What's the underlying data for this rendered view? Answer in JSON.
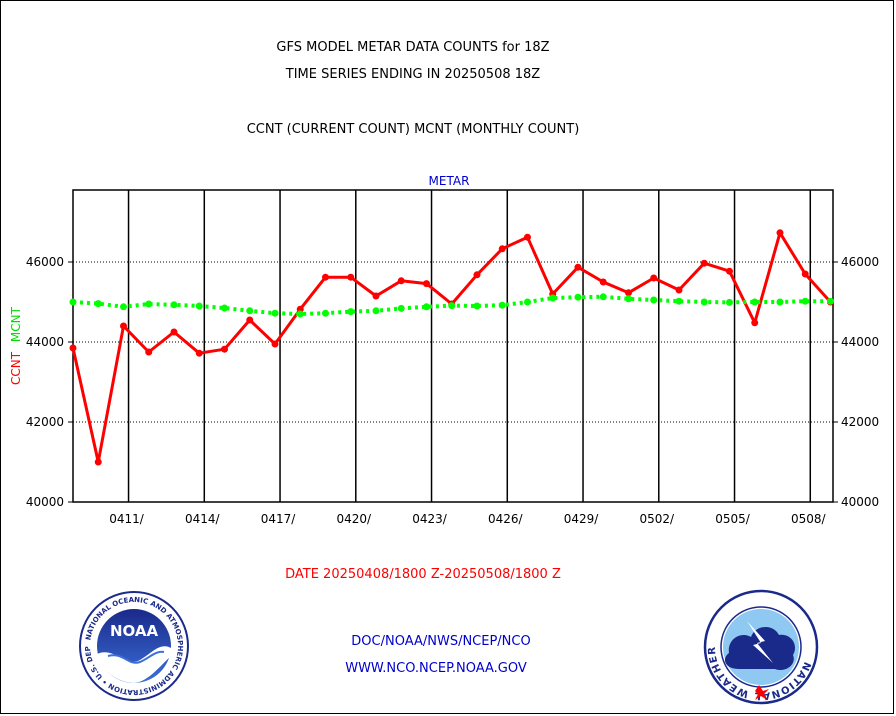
{
  "header": {
    "title_line1": "GFS MODEL METAR DATA COUNTS for 18Z",
    "title_line2": "TIME SERIES ENDING IN 20250508 18Z",
    "subtitle": "CCNT (CURRENT COUNT) MCNT (MONTHLY COUNT)",
    "plot_label": "METAR"
  },
  "chart_data": {
    "type": "line",
    "title": "GFS MODEL METAR DATA COUNTS for 18Z",
    "xlabel": "DATE 20250408/1800 Z-20250508/1800 Z",
    "ylabel_left": "CCNT",
    "ylabel_left2": "MCNT",
    "ylim": [
      40000,
      47800
    ],
    "yticks": [
      40000,
      42000,
      44000,
      46000
    ],
    "ytick_labels": [
      "40000",
      "42000",
      "44000",
      "46000"
    ],
    "xlim": [
      0,
      30.1
    ],
    "xtick_positions": [
      2.2,
      5.2,
      8.2,
      11.2,
      14.2,
      17.2,
      20.2,
      23.2,
      26.2,
      29.2
    ],
    "xtick_labels": [
      "0411/",
      "0414/",
      "0417/",
      "0420/",
      "0423/",
      "0426/",
      "0429/",
      "0502/",
      "0505/",
      "0508/"
    ],
    "grid": true,
    "series": [
      {
        "name": "CCNT",
        "color": "#ff0000",
        "values": [
          43850,
          41000,
          44400,
          43750,
          44250,
          43720,
          43820,
          44550,
          43950,
          44820,
          45620,
          45620,
          45150,
          45530,
          45460,
          44950,
          45680,
          46330,
          46620,
          45200,
          45870,
          45500,
          45230,
          45600,
          45300,
          45970,
          45770,
          44480,
          46730,
          45700,
          45000
        ]
      },
      {
        "name": "MCNT",
        "color": "#00ff00",
        "values": [
          45000,
          44960,
          44880,
          44950,
          44930,
          44900,
          44850,
          44780,
          44720,
          44700,
          44720,
          44760,
          44780,
          44840,
          44880,
          44910,
          44900,
          44920,
          45000,
          45100,
          45120,
          45130,
          45080,
          45050,
          45020,
          45000,
          44990,
          45000,
          45000,
          45020,
          45020
        ]
      }
    ]
  },
  "footer": {
    "link1": "DOC/NOAA/NWS/NCEP/NCO",
    "link2": "WWW.NCO.NCEP.NOAA.GOV",
    "noaa_text": "NOAA",
    "noaa_ring": "NATIONAL OCEANIC AND ATMOSPHERIC ADMINISTRATION • U.S. DEPARTMENT OF COMMERCE •",
    "nws_ring": "NATIONAL WEATHER SERVICE"
  },
  "colors": {
    "ccnt": "#ff0000",
    "mcnt": "#00ff00",
    "text_blue": "#0000cc",
    "axis": "#000000"
  }
}
